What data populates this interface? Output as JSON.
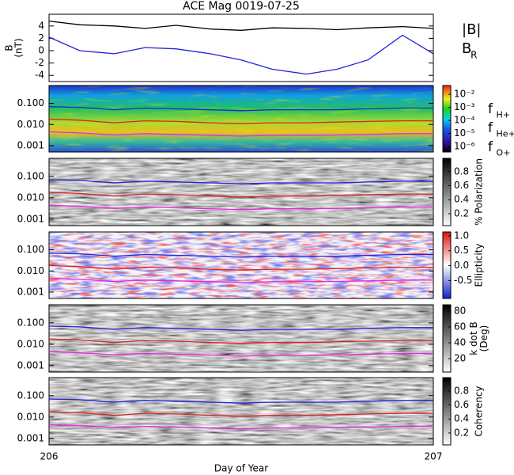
{
  "chart_data": [
    {
      "type": "line",
      "title": "ACE Mag 0019-07-25",
      "ylabel": [
        "B",
        "(nT)"
      ],
      "x": [
        206,
        206.08,
        206.17,
        206.25,
        206.33,
        206.42,
        206.5,
        206.58,
        206.67,
        206.75,
        206.83,
        206.92,
        207
      ],
      "ylim": [
        -5,
        5.9
      ],
      "yticks": [
        4,
        2,
        0,
        -2,
        -4
      ],
      "series": [
        {
          "name": "|B|",
          "color": "#000000",
          "values": [
            4.8,
            4.2,
            4.0,
            3.6,
            4.1,
            3.5,
            3.3,
            3.7,
            3.6,
            3.4,
            3.7,
            3.9,
            3.6
          ]
        },
        {
          "name": "B",
          "subscript": "R",
          "color": "#2222dd",
          "values": [
            2.2,
            0.0,
            -0.5,
            0.5,
            0.3,
            -0.5,
            -1.5,
            -3.0,
            -3.8,
            -3.0,
            -1.5,
            2.5,
            -0.5
          ]
        }
      ]
    },
    {
      "type": "spectrogram",
      "colormap": "rainbow",
      "log_y": true,
      "ylim": [
        0.0005,
        0.7
      ],
      "yticks": [
        {
          "value": 0.1,
          "label": "0.100"
        },
        {
          "value": 0.01,
          "label": "0.010"
        },
        {
          "value": 0.001,
          "label": "0.001"
        }
      ],
      "log_c": true,
      "clim": [
        3.8e-07,
        0.047
      ],
      "cticks": [
        {
          "value": 0.01,
          "label": "10⁻²"
        },
        {
          "value": 0.001,
          "label": "10⁻³"
        },
        {
          "value": 0.0001,
          "label": "10⁻⁴"
        },
        {
          "value": 1e-05,
          "label": "10⁻⁵"
        },
        {
          "value": 1e-06,
          "label": "10⁻⁶"
        }
      ],
      "x": [
        206,
        206.08,
        206.17,
        206.25,
        206.33,
        206.42,
        206.5,
        206.58,
        206.67,
        206.75,
        206.83,
        206.92,
        207
      ],
      "series": [
        {
          "name": "f",
          "subscript": "H+",
          "color": "#2222dd",
          "values": [
            0.07,
            0.065,
            0.05,
            0.06,
            0.055,
            0.05,
            0.045,
            0.05,
            0.05,
            0.05,
            0.055,
            0.06,
            0.06
          ]
        },
        {
          "name": "f",
          "subscript": "He+",
          "color": "#dd2222",
          "values": [
            0.018,
            0.016,
            0.012,
            0.015,
            0.014,
            0.012,
            0.011,
            0.012,
            0.012,
            0.013,
            0.014,
            0.015,
            0.015
          ]
        },
        {
          "name": "f",
          "subscript": "O+",
          "color": "#ee22ee",
          "values": [
            0.0045,
            0.004,
            0.0032,
            0.0037,
            0.0034,
            0.0031,
            0.0028,
            0.0031,
            0.0031,
            0.0032,
            0.0034,
            0.0037,
            0.0037
          ]
        }
      ]
    },
    {
      "type": "spectrogram",
      "colormap": "gray",
      "log_y": true,
      "ylim": [
        0.0005,
        0.7
      ],
      "yticks": [
        {
          "value": 0.1,
          "label": "0.100"
        },
        {
          "value": 0.01,
          "label": "0.010"
        },
        {
          "value": 0.001,
          "label": "0.001"
        }
      ],
      "clim": [
        0.03,
        0.99
      ],
      "cticks": [
        0.8,
        0.6,
        0.4,
        0.2
      ],
      "clabel": [
        "% Polarization"
      ]
    },
    {
      "type": "spectrogram",
      "colormap": "bluered",
      "log_y": true,
      "ylim": [
        0.0005,
        0.7
      ],
      "yticks": [
        {
          "value": 0.1,
          "label": "0.100"
        },
        {
          "value": 0.01,
          "label": "0.010"
        },
        {
          "value": 0.001,
          "label": "0.001"
        }
      ],
      "clim": [
        -1.1,
        1.13
      ],
      "cticks": [
        {
          "value": 1,
          "label": "1.0"
        },
        0.5,
        {
          "value": 0,
          "label": "0.0"
        },
        -0.5
      ],
      "clabel": [
        "Ellipticity"
      ]
    },
    {
      "type": "spectrogram",
      "colormap": "gray",
      "log_y": true,
      "ylim": [
        0.0005,
        0.7
      ],
      "yticks": [
        {
          "value": 0.1,
          "label": "0.100"
        },
        {
          "value": 0.01,
          "label": "0.010"
        },
        {
          "value": 0.001,
          "label": "0.001"
        }
      ],
      "clim": [
        3,
        88
      ],
      "cticks": [
        80,
        60,
        40,
        20
      ],
      "clabel": [
        "k dot B",
        "(Deg)"
      ]
    },
    {
      "type": "spectrogram",
      "colormap": "gray",
      "log_y": true,
      "ylim": [
        0.0005,
        0.7
      ],
      "yticks": [
        {
          "value": 0.1,
          "label": "0.100"
        },
        {
          "value": 0.01,
          "label": "0.010"
        },
        {
          "value": 0.001,
          "label": "0.001"
        }
      ],
      "clim": [
        0.03,
        0.99
      ],
      "cticks": [
        0.8,
        0.6,
        0.4,
        0.2
      ],
      "clabel": [
        "Coherency"
      ],
      "xlim": [
        206,
        207
      ],
      "xticks": [
        206,
        207
      ],
      "xlabel": "Day of Year"
    }
  ]
}
